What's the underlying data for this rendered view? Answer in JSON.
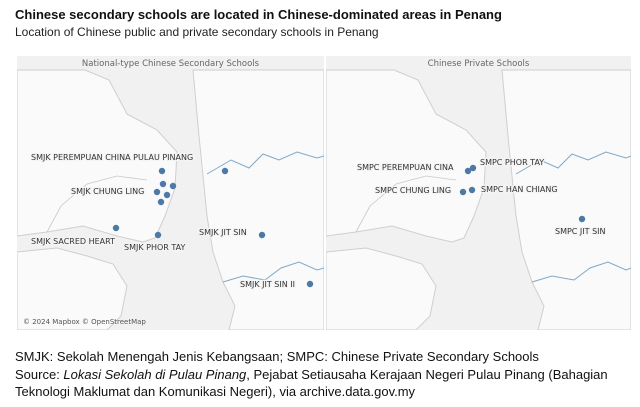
{
  "title": "Chinese secondary schools are located in Chinese-dominated areas in Penang",
  "subtitle": "Location of Chinese public and private secondary schools in Penang",
  "panels": [
    {
      "title": "National-type Chinese Secondary Schools",
      "credit": "© 2024 Mapbox © OpenStreetMap",
      "dot_color": "#4e79a7",
      "labels": [
        "SMJK PEREMPUAN CHINA PULAU PINANG",
        "SMJK CHUNG LING",
        "SMJK SACRED HEART",
        "SMJK PHOR TAY",
        "SMJK JIT SIN",
        "SMJK JIT SIN II"
      ]
    },
    {
      "title": "Chinese Private Schools",
      "dot_color": "#4e79a7",
      "labels": [
        "SMPC PEREMPUAN CINA",
        "SMPC PHOR TAY",
        "SMPC CHUNG LING",
        "SMPC HAN CHIANG",
        "SMPC JIT SIN"
      ]
    }
  ],
  "footnote": "SMJK: Sekolah Menengah Jenis Kebangsaan; SMPC: Chinese Private Secondary Schools",
  "source": {
    "prefix": "Source: ",
    "doc_title": "Lokasi Sekolah di Pulau Pinang",
    "rest": ", Pejabat Setiausaha Kerajaan Negeri Pulau Pinang (Bahagian Teknologi Maklumat dan Komunikasi Negeri), via archive.data.gov.my"
  }
}
